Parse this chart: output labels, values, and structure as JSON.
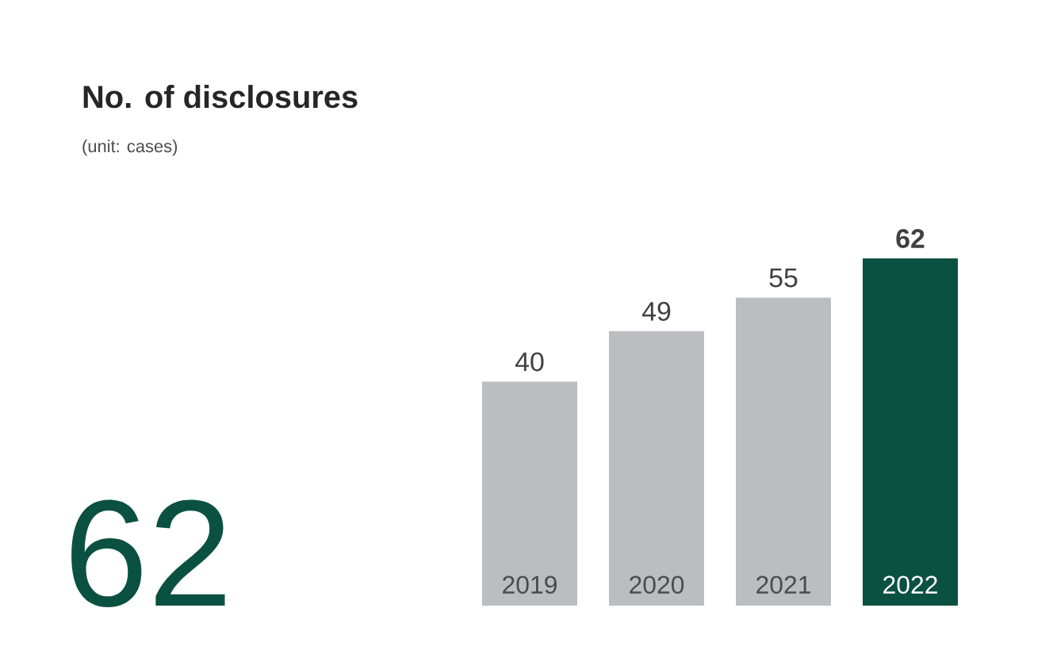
{
  "chart_data": {
    "type": "bar",
    "title": "No. of disclosures",
    "subtitle": "(unit: cases)",
    "categories": [
      "2019",
      "2020",
      "2021",
      "2022"
    ],
    "values": [
      40,
      49,
      55,
      62
    ],
    "colors": [
      "#bcbdc0",
      "#bcbdc0",
      "#bcbdc0",
      "#0b5142"
    ],
    "data_labels": true,
    "annotations": [
      "62"
    ]
  }
}
